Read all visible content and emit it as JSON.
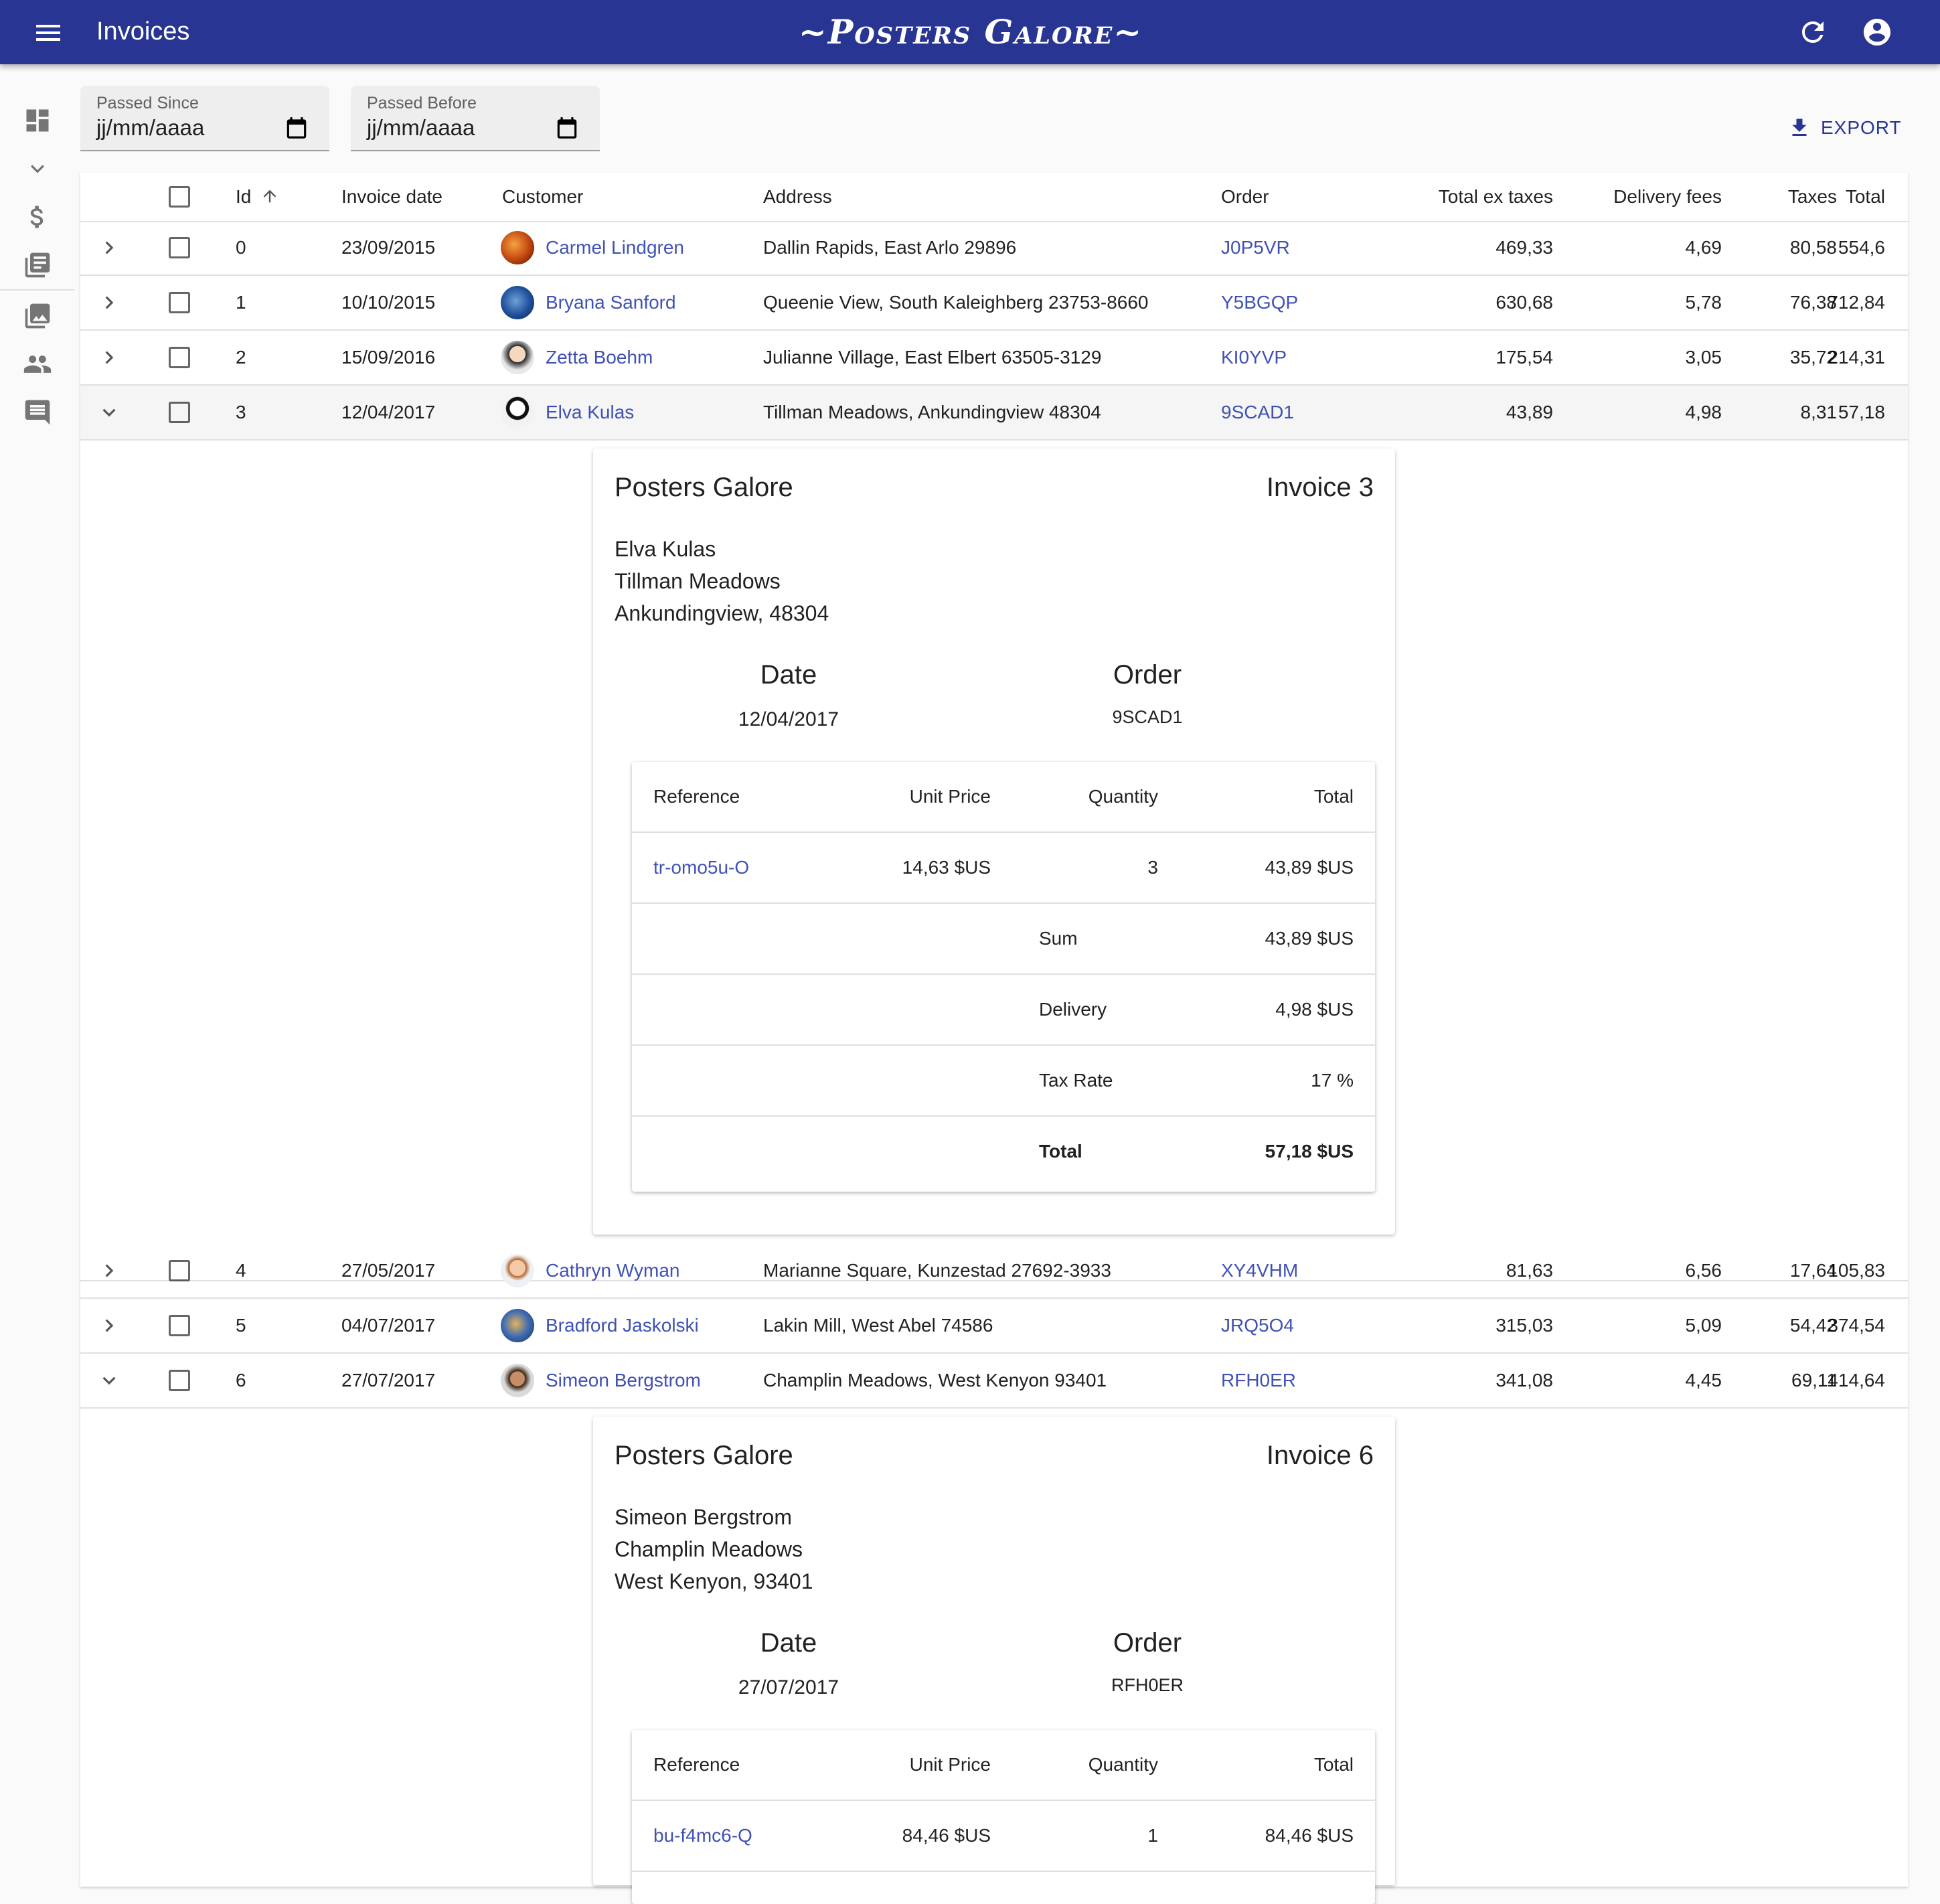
{
  "app": {
    "title": "Invoices",
    "brand": "~Posters Galore~"
  },
  "filters": {
    "since_label": "Passed Since",
    "since_value": "jj/mm/aaaa",
    "before_label": "Passed Before",
    "before_value": "jj/mm/aaaa"
  },
  "toolbar": {
    "export_label": "EXPORT"
  },
  "sidebar": {
    "items": [
      {
        "icon": "dashboard-icon"
      },
      {
        "icon": "chevron-down-icon"
      },
      {
        "icon": "dollar-icon"
      },
      {
        "icon": "library-books-icon"
      },
      {
        "icon": "collections-icon"
      },
      {
        "icon": "people-icon"
      },
      {
        "icon": "comment-icon"
      }
    ]
  },
  "table": {
    "headers": {
      "id": "Id",
      "date": "Invoice date",
      "customer": "Customer",
      "address": "Address",
      "order": "Order",
      "total_ex_taxes": "Total ex taxes",
      "delivery_fees": "Delivery fees",
      "taxes": "Taxes",
      "total": "Total"
    },
    "rows": [
      {
        "id": "0",
        "date": "23/09/2015",
        "customer": "Carmel Lindgren",
        "address": "Dallin Rapids, East Arlo 29896",
        "order": "J0P5VR",
        "total_ex_taxes": "469,33",
        "delivery_fees": "4,69",
        "taxes": "80,58",
        "total": "554,6"
      },
      {
        "id": "1",
        "date": "10/10/2015",
        "customer": "Bryana Sanford",
        "address": "Queenie View, South Kaleighberg 23753-8660",
        "order": "Y5BGQP",
        "total_ex_taxes": "630,68",
        "delivery_fees": "5,78",
        "taxes": "76,38",
        "total": "712,84"
      },
      {
        "id": "2",
        "date": "15/09/2016",
        "customer": "Zetta Boehm",
        "address": "Julianne Village, East Elbert 63505-3129",
        "order": "KI0YVP",
        "total_ex_taxes": "175,54",
        "delivery_fees": "3,05",
        "taxes": "35,72",
        "total": "214,31"
      },
      {
        "id": "3",
        "date": "12/04/2017",
        "customer": "Elva Kulas",
        "address": "Tillman Meadows, Ankundingview 48304",
        "order": "9SCAD1",
        "total_ex_taxes": "43,89",
        "delivery_fees": "4,98",
        "taxes": "8,31",
        "total": "57,18"
      },
      {
        "id": "4",
        "date": "27/05/2017",
        "customer": "Cathryn Wyman",
        "address": "Marianne Square, Kunzestad 27692-3933",
        "order": "XY4VHM",
        "total_ex_taxes": "81,63",
        "delivery_fees": "6,56",
        "taxes": "17,64",
        "total": "105,83"
      },
      {
        "id": "5",
        "date": "04/07/2017",
        "customer": "Bradford Jaskolski",
        "address": "Lakin Mill, West Abel 74586",
        "order": "JRQ5O4",
        "total_ex_taxes": "315,03",
        "delivery_fees": "5,09",
        "taxes": "54,42",
        "total": "374,54"
      },
      {
        "id": "6",
        "date": "27/07/2017",
        "customer": "Simeon Bergstrom",
        "address": "Champlin Meadows, West Kenyon 93401",
        "order": "RFH0ER",
        "total_ex_taxes": "341,08",
        "delivery_fees": "4,45",
        "taxes": "69,11",
        "total": "414,64"
      }
    ]
  },
  "invoices": [
    {
      "brand": "Posters Galore",
      "title": "Invoice 3",
      "name": "Elva Kulas",
      "street": "Tillman Meadows",
      "city": "Ankundingview, 48304",
      "date_label": "Date",
      "date": "12/04/2017",
      "order_label": "Order",
      "order": "9SCAD1",
      "lines_header": {
        "reference": "Reference",
        "unit_price": "Unit Price",
        "quantity": "Quantity",
        "total": "Total"
      },
      "line": {
        "reference": "tr-omo5u-O",
        "unit_price": "14,63 $US",
        "quantity": "3",
        "total": "43,89 $US"
      },
      "sum_label": "Sum",
      "sum": "43,89 $US",
      "delivery_label": "Delivery",
      "delivery": "4,98 $US",
      "tax_label": "Tax Rate",
      "tax": "17 %",
      "total_label": "Total",
      "total": "57,18 $US"
    },
    {
      "brand": "Posters Galore",
      "title": "Invoice 6",
      "name": "Simeon Bergstrom",
      "street": "Champlin Meadows",
      "city": "West Kenyon, 93401",
      "date_label": "Date",
      "date": "27/07/2017",
      "order_label": "Order",
      "order": "RFH0ER",
      "lines_header": {
        "reference": "Reference",
        "unit_price": "Unit Price",
        "quantity": "Quantity",
        "total": "Total"
      },
      "line": {
        "reference": "bu-f4mc6-Q",
        "unit_price": "84,46 $US",
        "quantity": "1",
        "total": "84,46 $US"
      }
    }
  ],
  "colors": {
    "appbar": "#283593",
    "link": "#3f51b5"
  }
}
